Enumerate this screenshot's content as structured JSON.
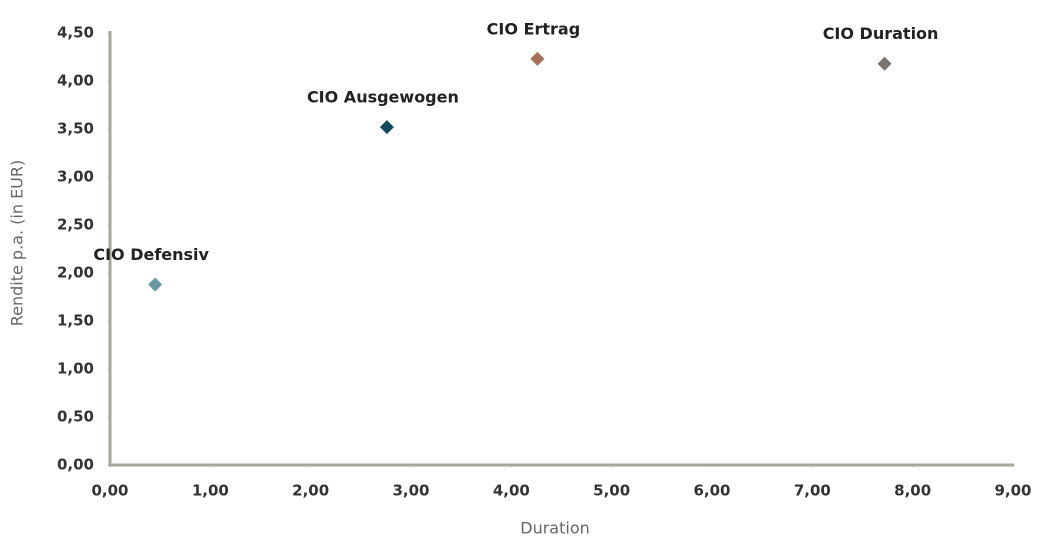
{
  "chart_data": {
    "type": "scatter",
    "x_label": "Duration",
    "y_label": "Rendite p.a. (in EUR)",
    "series": [
      {
        "name": "CIO Defensiv",
        "color": "#6a97a3",
        "x": [
          0.45
        ],
        "values": [
          1.88
        ]
      },
      {
        "name": "CIO Ausgewogen",
        "color": "#0f4a5c",
        "x": [
          2.76
        ],
        "values": [
          3.52
        ]
      },
      {
        "name": "CIO Ertrag",
        "color": "#a56f5a",
        "x": [
          4.26
        ],
        "values": [
          4.23
        ]
      },
      {
        "name": "CIO Duration",
        "color": "#7a7570",
        "x": [
          7.72
        ],
        "values": [
          4.18
        ]
      }
    ],
    "xlim": [
      0,
      9
    ],
    "xticks": [
      {
        "value": 0,
        "label": "0,00"
      },
      {
        "value": 1,
        "label": "1,00"
      },
      {
        "value": 2,
        "label": "2,00"
      },
      {
        "value": 3,
        "label": "3,00"
      },
      {
        "value": 4,
        "label": "4,00"
      },
      {
        "value": 5,
        "label": "5,00"
      },
      {
        "value": 6,
        "label": "6,00"
      },
      {
        "value": 7,
        "label": "7,00"
      },
      {
        "value": 8,
        "label": "8,00"
      },
      {
        "value": 9,
        "label": "9,00"
      }
    ],
    "ylim": [
      0,
      4.5
    ],
    "yticks": [
      {
        "value": 0,
        "label": "0,00"
      },
      {
        "value": 0.5,
        "label": "0,50"
      },
      {
        "value": 1,
        "label": "1,00"
      },
      {
        "value": 1.5,
        "label": "1,50"
      },
      {
        "value": 2,
        "label": "2,00"
      },
      {
        "value": 2.5,
        "label": "2,50"
      },
      {
        "value": 3,
        "label": "3,00"
      },
      {
        "value": 3.5,
        "label": "3,50"
      },
      {
        "value": 4,
        "label": "4,00"
      },
      {
        "value": 4.5,
        "label": "4,50"
      }
    ],
    "grid": false
  }
}
